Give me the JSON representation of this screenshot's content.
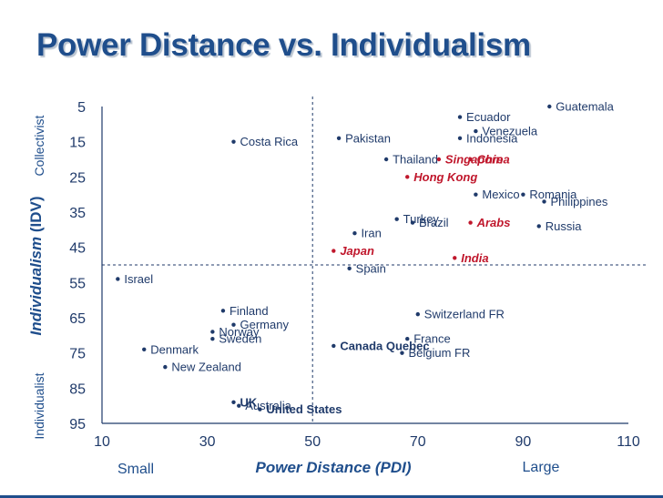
{
  "slide": {
    "title": "Power Distance vs. Individualism"
  },
  "colors": {
    "title": "#1f4e8c",
    "text": "#1f3a6a",
    "highlight": "#c0172c"
  },
  "chart_data": {
    "type": "scatter",
    "title": "Power Distance vs. Individualism",
    "xlabel": "Power Distance (PDI)",
    "ylabel_prefix": "Individualism",
    "ylabel_suffix": "(IDV)",
    "x_low_label": "Small",
    "x_high_label": "Large",
    "y_top_label": "Collectivist",
    "y_bottom_label": "Individualist",
    "xlim": [
      10,
      110
    ],
    "ylim": [
      95,
      5
    ],
    "x_axis_reversed": false,
    "y_axis_reversed": true,
    "xticks": [
      10,
      30,
      50,
      70,
      90,
      110
    ],
    "yticks": [
      5,
      15,
      25,
      35,
      45,
      55,
      65,
      75,
      85,
      95
    ],
    "grid": false,
    "divider_lines": {
      "x": 50,
      "y": 50
    },
    "points": [
      {
        "label": "Guatemala",
        "x": 95,
        "y": 5,
        "style": "normal"
      },
      {
        "label": "Ecuador",
        "x": 78,
        "y": 8,
        "style": "normal"
      },
      {
        "label": "Venezuela",
        "x": 81,
        "y": 12,
        "style": "normal"
      },
      {
        "label": "Indonesia",
        "x": 78,
        "y": 14,
        "style": "normal"
      },
      {
        "label": "Costa Rica",
        "x": 35,
        "y": 15,
        "style": "normal"
      },
      {
        "label": "Pakistan",
        "x": 55,
        "y": 14,
        "style": "normal"
      },
      {
        "label": "Thailand",
        "x": 64,
        "y": 20,
        "style": "normal"
      },
      {
        "label": "Singapore",
        "x": 74,
        "y": 20,
        "style": "highlight"
      },
      {
        "label": "China",
        "x": 80,
        "y": 20,
        "style": "highlight"
      },
      {
        "label": "Hong Kong",
        "x": 68,
        "y": 25,
        "style": "highlight"
      },
      {
        "label": "Romania",
        "x": 90,
        "y": 30,
        "style": "normal"
      },
      {
        "label": "Philippines",
        "x": 94,
        "y": 32,
        "style": "normal"
      },
      {
        "label": "Mexico",
        "x": 81,
        "y": 30,
        "style": "normal"
      },
      {
        "label": "Turkey",
        "x": 66,
        "y": 37,
        "style": "normal"
      },
      {
        "label": "Iran",
        "x": 58,
        "y": 41,
        "style": "normal"
      },
      {
        "label": "Arabs",
        "x": 80,
        "y": 38,
        "style": "highlight"
      },
      {
        "label": "Russia",
        "x": 93,
        "y": 39,
        "style": "normal"
      },
      {
        "label": "Brazil",
        "x": 69,
        "y": 38,
        "style": "normal"
      },
      {
        "label": "Japan",
        "x": 54,
        "y": 46,
        "style": "highlight"
      },
      {
        "label": "India",
        "x": 77,
        "y": 48,
        "style": "highlight"
      },
      {
        "label": "Israel",
        "x": 13,
        "y": 54,
        "style": "normal"
      },
      {
        "label": "Spain",
        "x": 57,
        "y": 51,
        "style": "normal"
      },
      {
        "label": "Finland",
        "x": 33,
        "y": 63,
        "style": "normal"
      },
      {
        "label": "Germany",
        "x": 35,
        "y": 67,
        "style": "normal"
      },
      {
        "label": "Switzerland FR",
        "x": 70,
        "y": 64,
        "style": "normal"
      },
      {
        "label": "Norway",
        "x": 31,
        "y": 69,
        "style": "normal"
      },
      {
        "label": "Sweden",
        "x": 31,
        "y": 71,
        "style": "normal"
      },
      {
        "label": "France",
        "x": 68,
        "y": 71,
        "style": "normal"
      },
      {
        "label": "Belgium FR",
        "x": 67,
        "y": 75,
        "style": "normal"
      },
      {
        "label": "Denmark",
        "x": 18,
        "y": 74,
        "style": "normal"
      },
      {
        "label": "Canada Quebec",
        "x": 54,
        "y": 73,
        "style": "bold"
      },
      {
        "label": "New Zealand",
        "x": 22,
        "y": 79,
        "style": "normal"
      },
      {
        "label": "UK",
        "x": 35,
        "y": 89,
        "style": "bold"
      },
      {
        "label": "Australia",
        "x": 36,
        "y": 90,
        "style": "normal"
      },
      {
        "label": "United States",
        "x": 40,
        "y": 91,
        "style": "bold"
      }
    ]
  }
}
